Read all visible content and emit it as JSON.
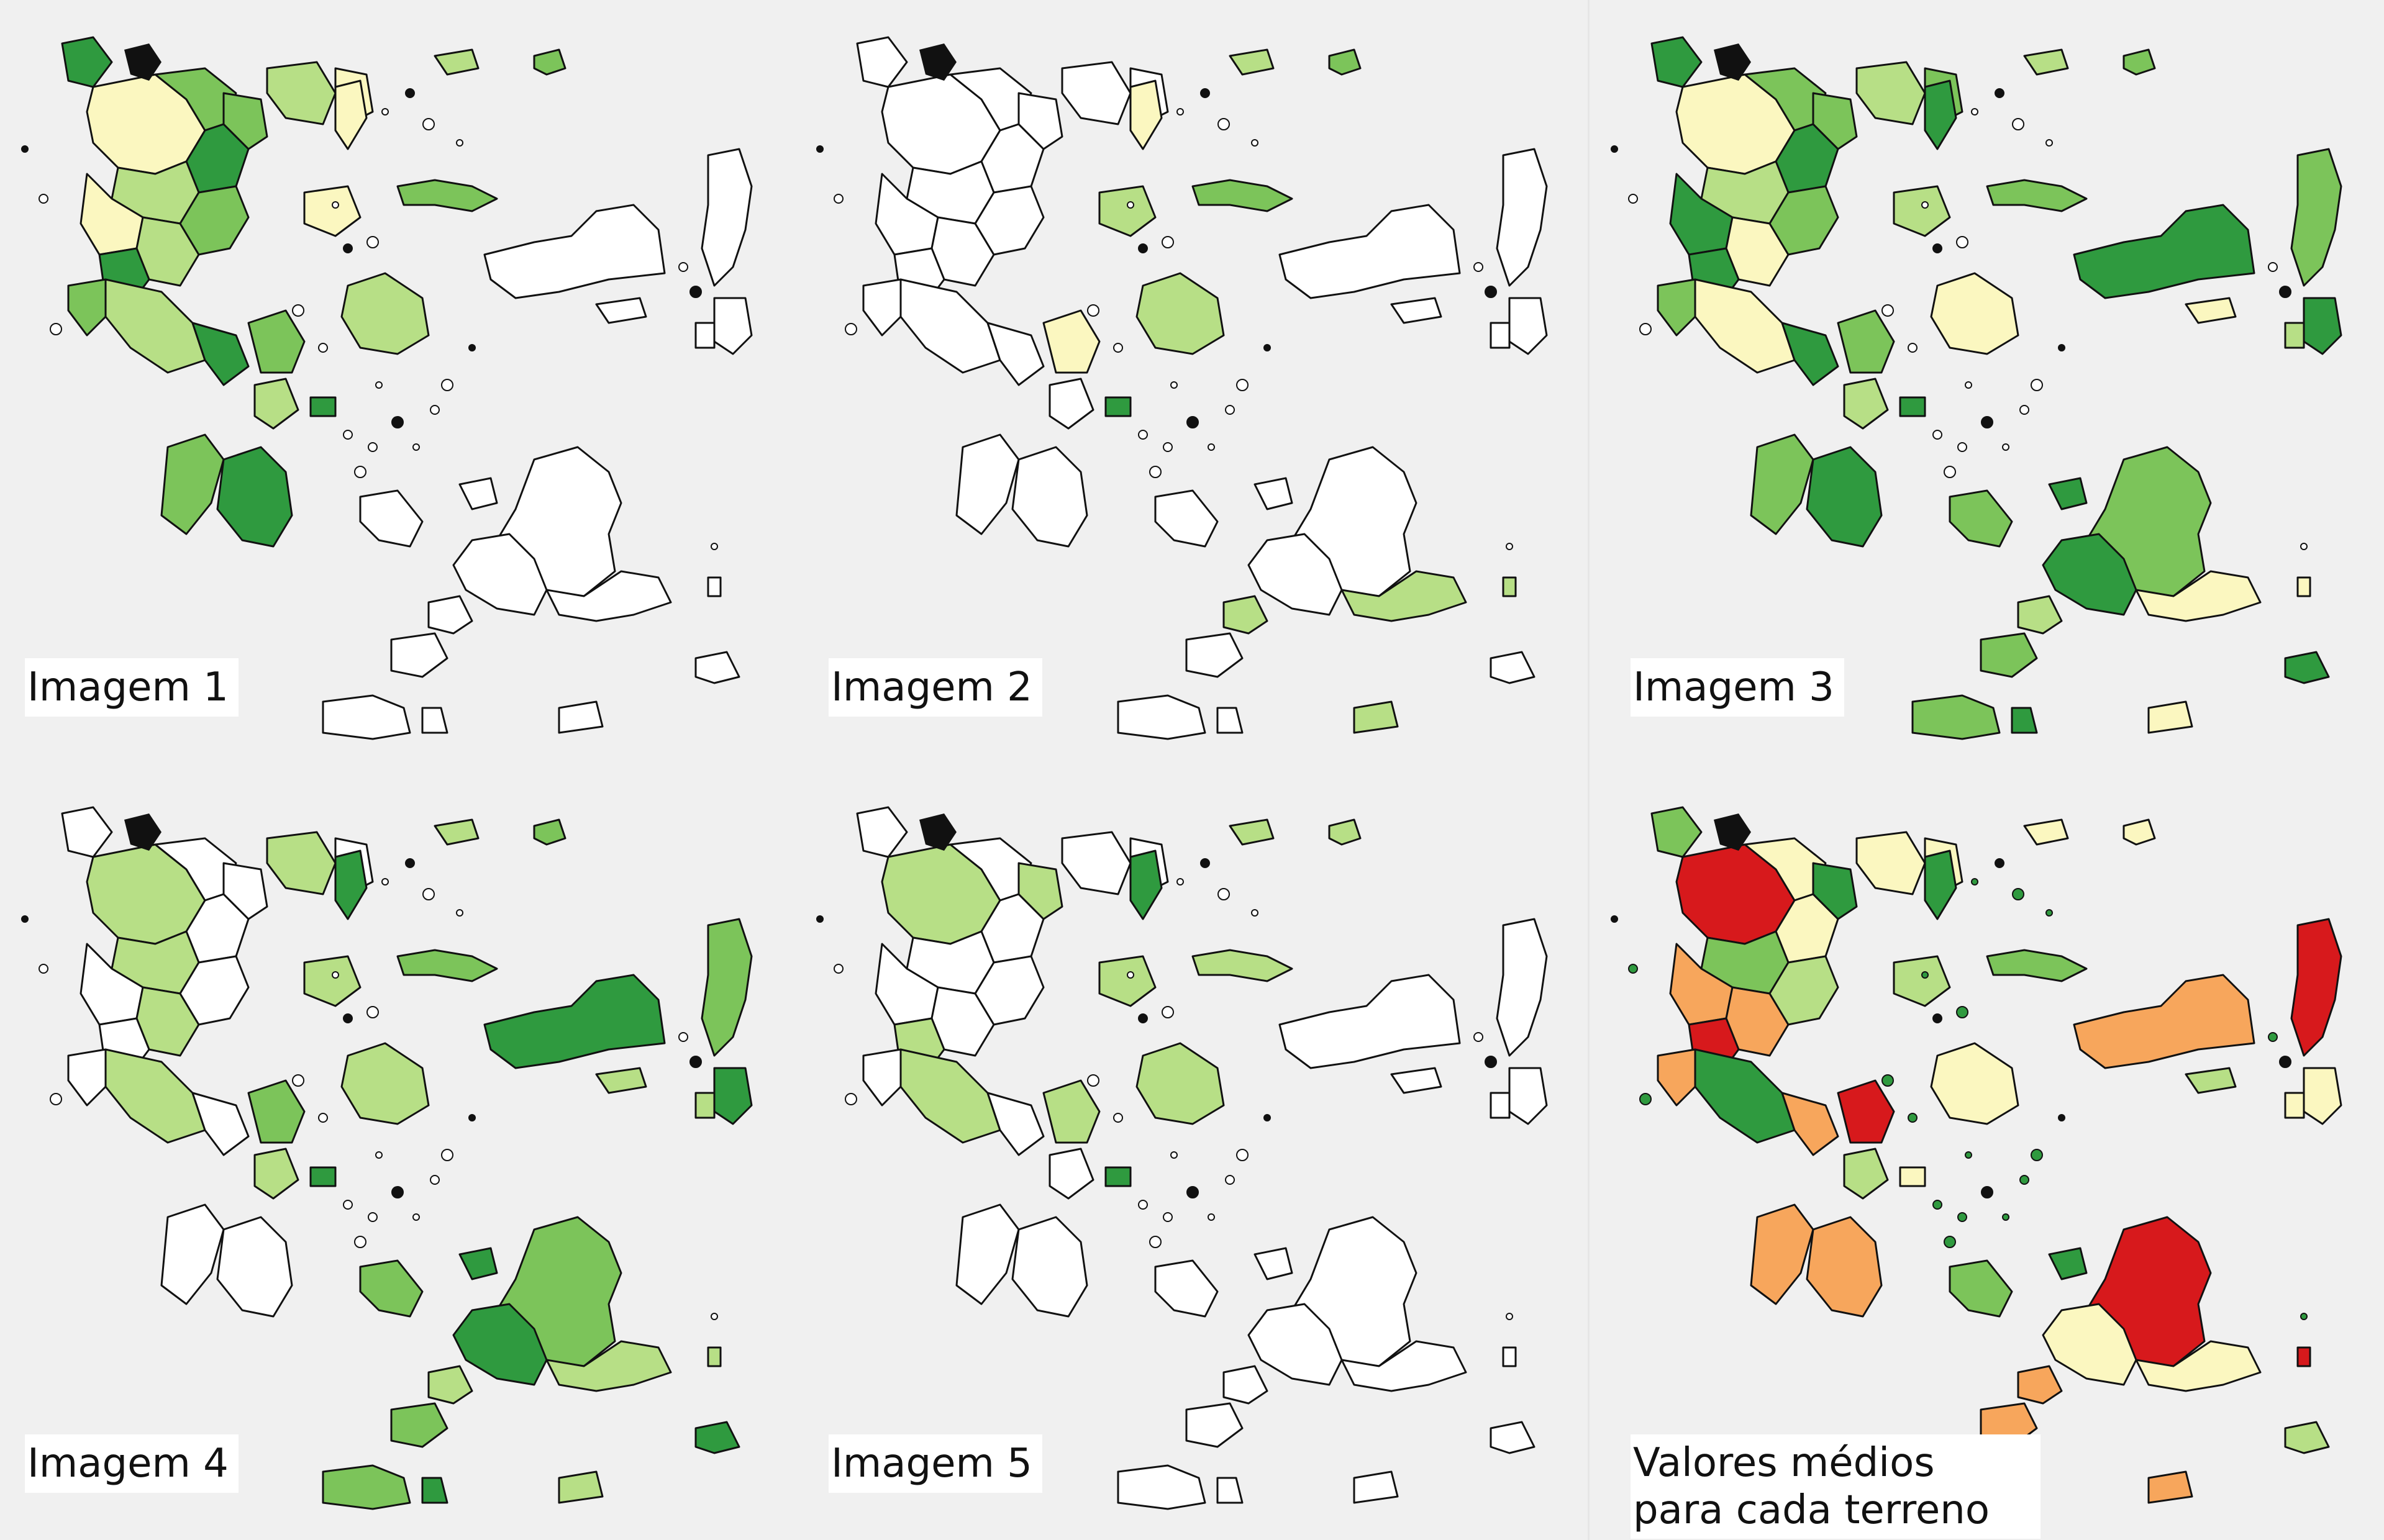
{
  "panels": [
    {
      "label": "Imagem 1",
      "style": "gradient-a"
    },
    {
      "label": "Imagem 2",
      "style": "partial-a"
    },
    {
      "label": "Imagem 3",
      "style": "gradient-b"
    },
    {
      "label": "Imagem 4",
      "style": "gradient-c"
    },
    {
      "label": "Imagem 5",
      "style": "partial-b"
    },
    {
      "label": "Valores médios para cada terreno",
      "style": "categorical"
    }
  ],
  "colors": {
    "background": "#f0f0f0",
    "outline": "#111111",
    "empty_fill": "#ffffff",
    "light_green": "#b7df86",
    "mid_green": "#7cc45a",
    "dark_green": "#2f9a3f",
    "pale_yellow": "#fbf7c0",
    "orange": "#f7a65c",
    "red": "#d7191c"
  }
}
